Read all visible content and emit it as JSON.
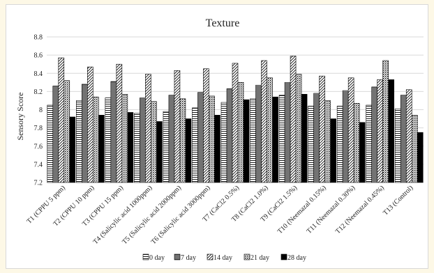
{
  "chart_data": {
    "type": "bar",
    "title": "Texture",
    "xlabel": "",
    "ylabel": "Sensory Score",
    "ylim": [
      7.2,
      8.8
    ],
    "yticks": [
      "7.2",
      "7.4",
      "7.6",
      "7.8",
      "8",
      "8.2",
      "8.4",
      "8.6",
      "8.8"
    ],
    "grid": true,
    "legend_position": "bottom",
    "categories": [
      "T1 (CPPU 5 ppm)",
      "T2 (CPPU 10 ppm)",
      "T3 (CPPU 15 ppm)",
      "T4 (Salicylic acid 1000ppm)",
      "T5 (Salicylic acid 2000ppm)",
      "T6 (Salicylic acid 3000ppm)",
      "T7 (CaCl2 0.5%)",
      "T8 (CaCl2 1.0%)",
      "T9 (CaCl2 1.5%)",
      "T10 (Neemazal 0.15%)",
      "T11 (Neemazal 0.30%)",
      "T12 (Neemazal 0.45%)",
      "T13 (Control)"
    ],
    "series": [
      {
        "name": "0 day",
        "pattern": "hlines",
        "values": [
          8.05,
          8.1,
          8.13,
          7.96,
          7.98,
          8.02,
          8.08,
          8.12,
          8.16,
          8.04,
          8.04,
          8.05,
          8.01
        ]
      },
      {
        "name": "7 day",
        "pattern": "hlines-dense",
        "values": [
          8.26,
          8.28,
          8.31,
          8.13,
          8.16,
          8.19,
          8.23,
          8.27,
          8.3,
          8.18,
          8.21,
          8.25,
          8.16
        ]
      },
      {
        "name": "14 day",
        "pattern": "diag",
        "values": [
          8.57,
          8.47,
          8.5,
          8.39,
          8.43,
          8.45,
          8.51,
          8.54,
          8.59,
          8.37,
          8.35,
          8.33,
          8.22
        ]
      },
      {
        "name": "21 day",
        "pattern": "dots",
        "values": [
          8.32,
          8.14,
          8.17,
          8.09,
          8.12,
          8.15,
          8.3,
          8.35,
          8.39,
          8.1,
          8.07,
          8.54,
          7.94
        ]
      },
      {
        "name": "28 day",
        "pattern": "solid",
        "values": [
          7.92,
          7.94,
          7.97,
          7.87,
          7.9,
          7.94,
          8.11,
          8.14,
          8.17,
          7.9,
          7.86,
          8.33,
          7.75
        ]
      }
    ]
  }
}
